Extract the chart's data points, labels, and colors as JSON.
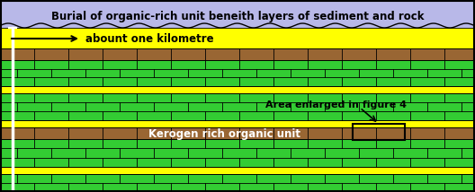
{
  "title": "Burial of organic-rich unit beneith layers of sediment and rock",
  "arrow_label": "abount one kilometre",
  "label_area_enlarged": "Area enlarged in figure 4",
  "label_kerogen": "Kerogen rich organic unit",
  "colors": {
    "sky": "#b8b8e8",
    "yellow": "#ffff00",
    "brown": "#996633",
    "green": "#33cc33",
    "black": "#000000",
    "white": "#ffffff"
  },
  "fig_width": 5.28,
  "fig_height": 2.14,
  "dpi": 100,
  "layers": [
    {
      "yb": 183,
      "yt": 214,
      "type": "sky"
    },
    {
      "yb": 160,
      "yt": 183,
      "type": "solid",
      "color": "yellow"
    },
    {
      "yb": 147,
      "yt": 160,
      "type": "brick",
      "color": "brown"
    },
    {
      "yb": 118,
      "yt": 147,
      "type": "brick",
      "color": "green"
    },
    {
      "yb": 110,
      "yt": 118,
      "type": "solid",
      "color": "yellow"
    },
    {
      "yb": 80,
      "yt": 110,
      "type": "brick",
      "color": "green"
    },
    {
      "yb": 72,
      "yt": 80,
      "type": "solid",
      "color": "yellow"
    },
    {
      "yb": 59,
      "yt": 72,
      "type": "brick",
      "color": "brown"
    },
    {
      "yb": 28,
      "yt": 59,
      "type": "brick",
      "color": "green"
    },
    {
      "yb": 20,
      "yt": 28,
      "type": "solid",
      "color": "yellow"
    },
    {
      "yb": 0,
      "yt": 20,
      "type": "brick",
      "color": "green"
    }
  ]
}
